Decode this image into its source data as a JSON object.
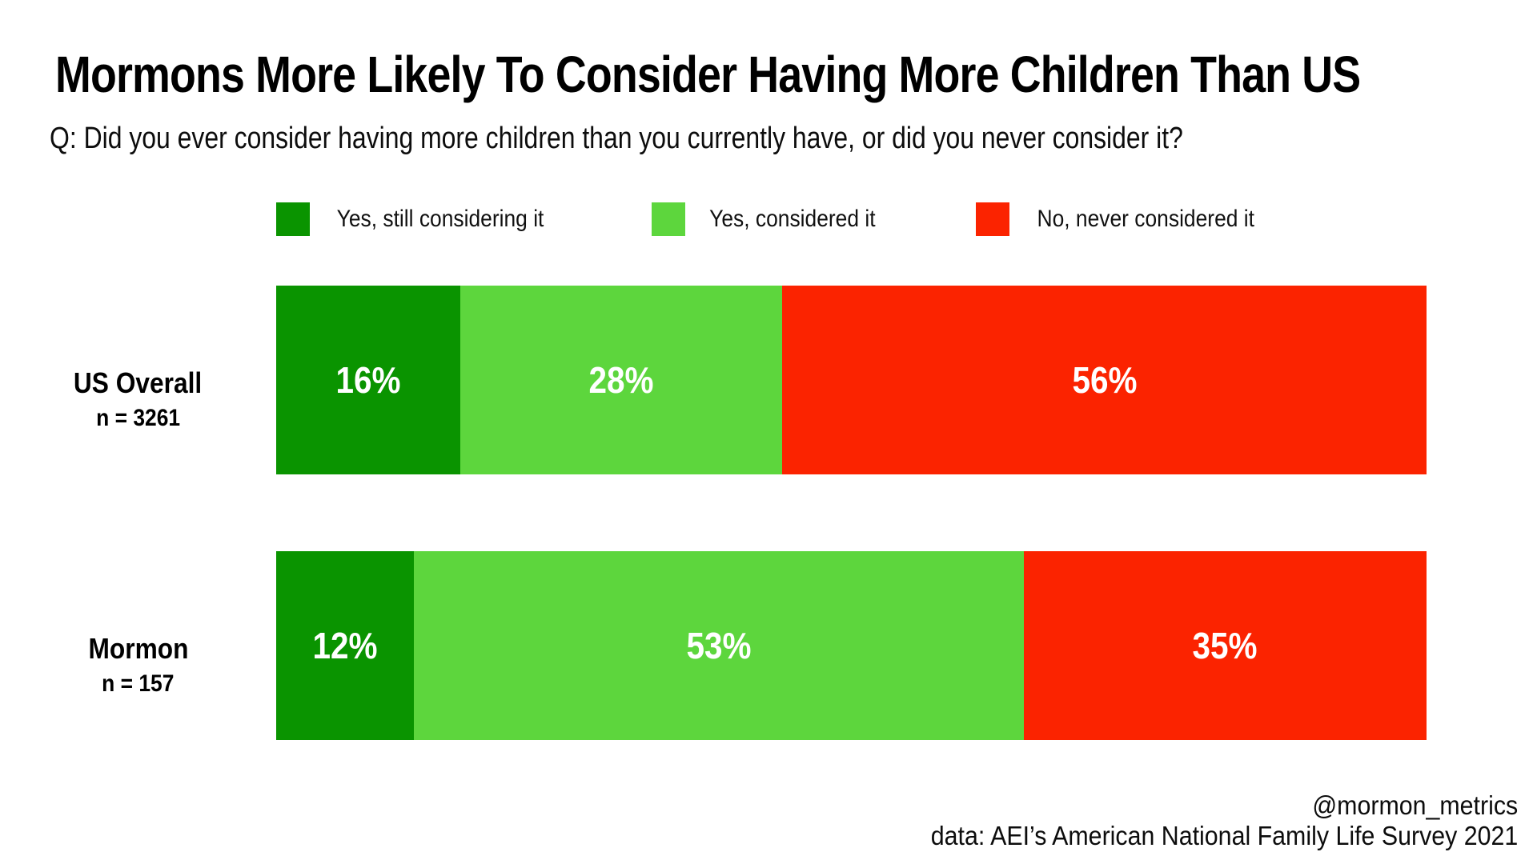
{
  "title": "Mormons More Likely To Consider Having More Children Than US",
  "subtitle": "Q: Did you ever consider having more children than you currently have, or did you never consider it?",
  "colors": {
    "still_considering": "#0a9400",
    "considered": "#5dd63d",
    "never_considered": "#fb2300",
    "text": "#000000",
    "value_label_text": "#ffffff",
    "background": "#ffffff"
  },
  "legend": [
    {
      "label": "Yes, still considering it",
      "color": "#0a9400"
    },
    {
      "label": "Yes, considered it",
      "color": "#5dd63d"
    },
    {
      "label": "No, never considered it",
      "color": "#fb2300"
    }
  ],
  "chart_data": {
    "type": "bar",
    "orientation": "horizontal",
    "stacked": true,
    "unit": "%",
    "xlim": [
      0,
      100
    ],
    "grid": false,
    "legend_position": "top",
    "value_labels": "inside-center-white-bold",
    "title": "Mormons More Likely To Consider Having More Children Than US",
    "categories": [
      "US Overall",
      "Mormon"
    ],
    "category_sublabels": [
      "n = 3261",
      "n = 157"
    ],
    "series": [
      {
        "name": "Yes, still considering it",
        "color": "#0a9400",
        "values": [
          16,
          12
        ]
      },
      {
        "name": "Yes, considered it",
        "color": "#5dd63d",
        "values": [
          28,
          53
        ]
      },
      {
        "name": "No, never considered it",
        "color": "#fb2300",
        "values": [
          56,
          35
        ]
      }
    ]
  },
  "footer": {
    "handle": "@mormon_metrics",
    "source": "data: AEI’s American National Family Life Survey 2021"
  }
}
